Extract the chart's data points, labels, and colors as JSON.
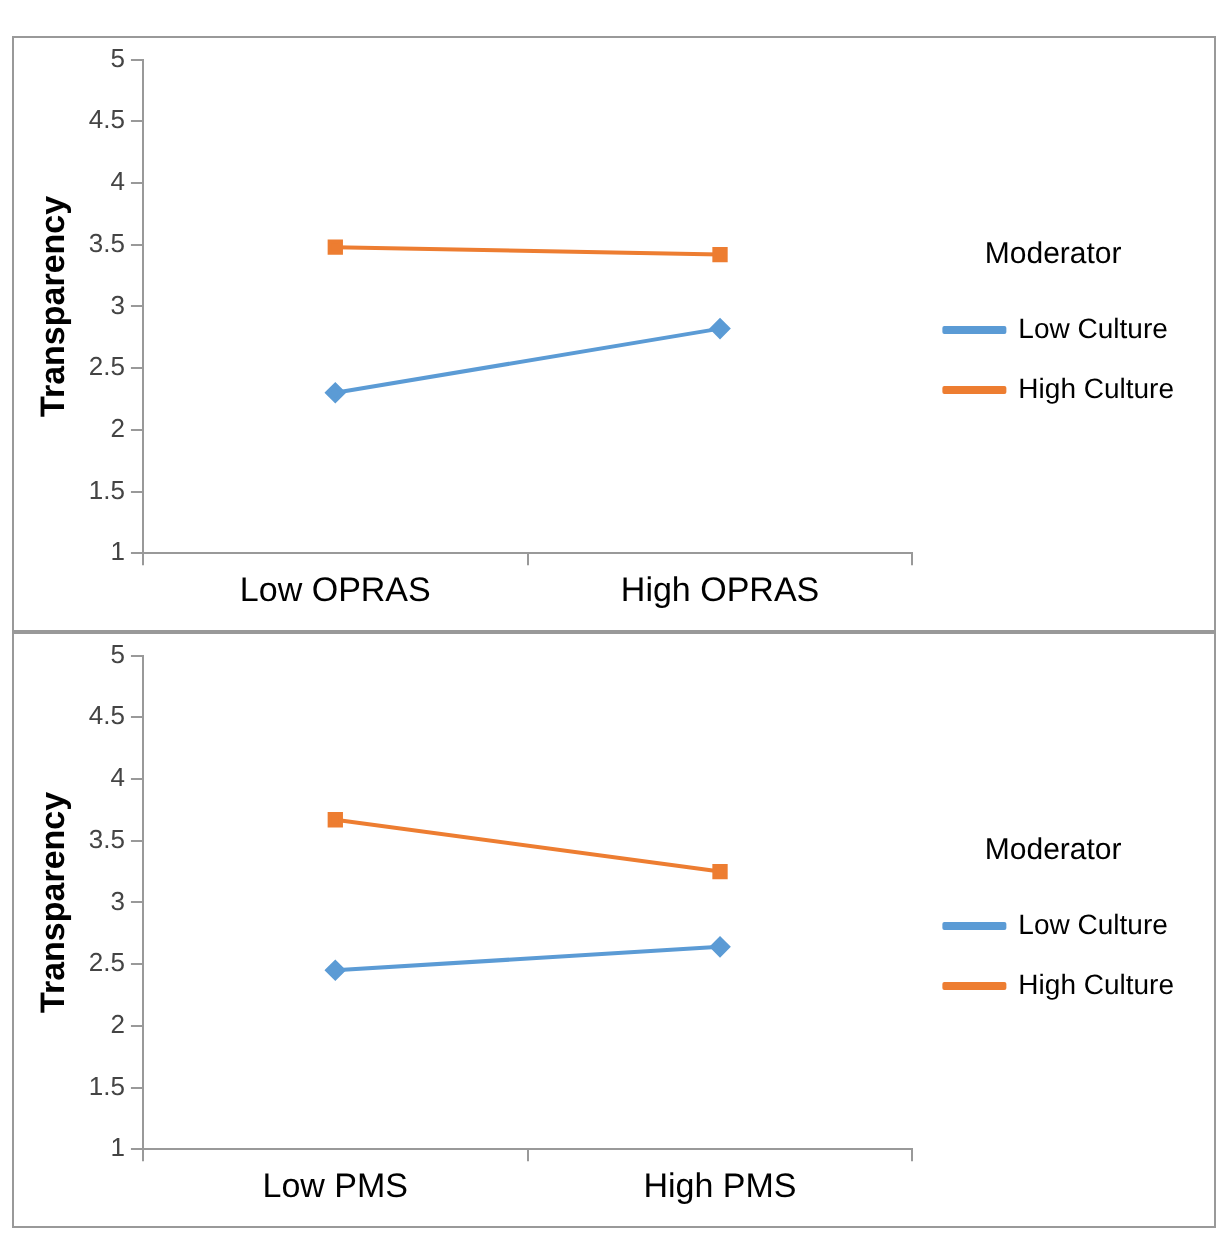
{
  "chart_data": [
    {
      "type": "line",
      "ylabel": "Transparency",
      "legend_title": "Moderator",
      "categories": [
        "Low OPRAS",
        "High OPRAS"
      ],
      "ylim": [
        1,
        5
      ],
      "yticks": [
        1,
        1.5,
        2,
        2.5,
        3,
        3.5,
        4,
        4.5,
        5
      ],
      "grid": false,
      "legend": "right",
      "series": [
        {
          "name": "Low Culture",
          "color": "#5b9bd5",
          "marker": "diamond",
          "values": [
            2.3,
            2.82
          ]
        },
        {
          "name": "High Culture",
          "color": "#ed7d31",
          "marker": "square",
          "values": [
            3.48,
            3.42
          ]
        }
      ]
    },
    {
      "type": "line",
      "ylabel": "Transparency",
      "legend_title": "Moderator",
      "categories": [
        "Low PMS",
        "High PMS"
      ],
      "ylim": [
        1,
        5
      ],
      "yticks": [
        1,
        1.5,
        2,
        2.5,
        3,
        3.5,
        4,
        4.5,
        5
      ],
      "grid": false,
      "legend": "right",
      "series": [
        {
          "name": "Low Culture",
          "color": "#5b9bd5",
          "marker": "diamond",
          "values": [
            2.45,
            2.64
          ]
        },
        {
          "name": "High Culture",
          "color": "#ed7d31",
          "marker": "square",
          "values": [
            3.67,
            3.25
          ]
        }
      ]
    }
  ]
}
